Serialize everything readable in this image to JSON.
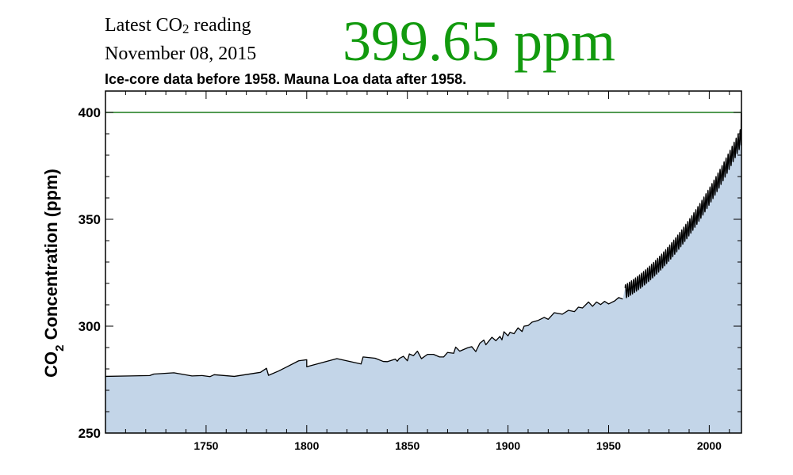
{
  "header": {
    "latest_label_prefix": "Latest CO",
    "latest_label_sub": "2",
    "latest_label_suffix": " reading",
    "date": "November 08, 2015",
    "value": "399.65 ppm",
    "value_color": "#129a0e",
    "subtitle": "Ice-core data before 1958. Mauna Loa data after 1958."
  },
  "chart_data": {
    "type": "area",
    "ylabel_prefix": "CO",
    "ylabel_sub": "2",
    "ylabel_suffix": " Concentration (ppm)",
    "xlabel": "",
    "xlim": [
      1700,
      2016
    ],
    "ylim": [
      250,
      410
    ],
    "x_ticks": [
      1750,
      1800,
      1850,
      1900,
      1950,
      2000
    ],
    "y_ticks": [
      250,
      300,
      350,
      400
    ],
    "reference_line": {
      "y": 400,
      "color": "#1a7a1a"
    },
    "fill_color": "#c3d5e8",
    "line_color": "#000000",
    "ice_core": {
      "x": [
        1700,
        1712,
        1722,
        1724,
        1734,
        1743,
        1748,
        1752,
        1754,
        1764,
        1777,
        1780,
        1781,
        1786,
        1790,
        1796,
        1800,
        1800,
        1815,
        1827,
        1828,
        1834,
        1838,
        1840,
        1844,
        1845,
        1846,
        1848,
        1850,
        1851,
        1853,
        1855,
        1857,
        1860,
        1863,
        1866,
        1868,
        1870,
        1873,
        1874,
        1876,
        1880,
        1882,
        1884,
        1886,
        1888,
        1889,
        1892,
        1894,
        1896,
        1897,
        1898,
        1900,
        1901,
        1903,
        1905,
        1907,
        1908,
        1910,
        1912,
        1915,
        1918,
        1920,
        1923,
        1927,
        1930,
        1933,
        1935,
        1937,
        1940,
        1942,
        1944,
        1946,
        1948,
        1950,
        1953,
        1955,
        1957
      ],
      "y": [
        276.5,
        276.7,
        276.9,
        277.6,
        278.2,
        276.7,
        276.9,
        276.4,
        277.3,
        276.5,
        278.4,
        280.3,
        277.0,
        279.0,
        280.9,
        283.8,
        284.3,
        281.0,
        284.8,
        282.3,
        285.6,
        285.0,
        283.5,
        283.4,
        284.6,
        283.6,
        284.9,
        285.9,
        283.8,
        287.0,
        286.2,
        288.3,
        284.8,
        286.8,
        286.8,
        285.6,
        285.6,
        287.7,
        287.3,
        290.2,
        288.3,
        289.9,
        290.4,
        288.1,
        292.0,
        293.5,
        291.3,
        294.8,
        293.2,
        295.2,
        293.6,
        297.4,
        295.5,
        297.1,
        296.5,
        299.2,
        297.5,
        300.0,
        300.3,
        301.9,
        302.7,
        304.1,
        303.2,
        306.3,
        305.6,
        307.4,
        306.8,
        308.9,
        308.5,
        311.3,
        309.3,
        311.3,
        310.1,
        311.6,
        310.4,
        311.8,
        313.4,
        312.7
      ]
    },
    "mauna_loa": {
      "start_year": 1958.2,
      "end_year": 2015.85,
      "trend": "316 + 0.55*t + 0.0122*t^2 ppm, t = years since 1958",
      "seasonal_amplitude_start": 3.2,
      "seasonal_amplitude_end": 4.2,
      "latest_value": 399.65
    }
  }
}
